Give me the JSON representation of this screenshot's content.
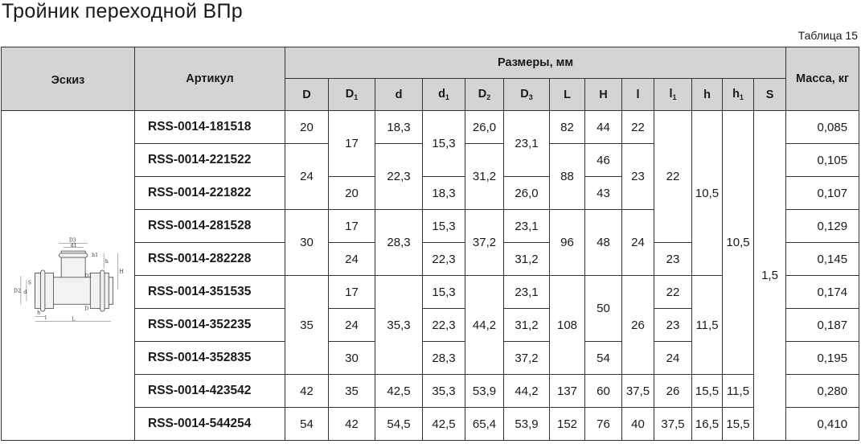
{
  "title": "Тройник переходной ВПр",
  "table_label": "Таблица 15",
  "header": {
    "sketch": "Эскиз",
    "article": "Артикул",
    "dimensions": "Размеры, мм",
    "mass": "Масса, кг"
  },
  "sketch": {
    "labels": [
      "D3",
      "d1",
      "h1",
      "h",
      "H",
      "D1",
      "D2",
      "d",
      "S",
      "D",
      "h",
      "l",
      "L"
    ]
  },
  "articles": [
    "RSS-0014-181518",
    "RSS-0014-221522",
    "RSS-0014-221822",
    "RSS-0014-281528",
    "RSS-0014-282228",
    "RSS-0014-351535",
    "RSS-0014-352235",
    "RSS-0014-352835",
    "RSS-0014-423542",
    "RSS-0014-544254"
  ],
  "mass": [
    "0,085",
    "0,105",
    "0,107",
    "0,129",
    "0,145",
    "0,174",
    "0,187",
    "0,195",
    "0,280",
    "0,410"
  ],
  "dimension_columns": [
    {
      "label": "D",
      "sub": "",
      "groups": [
        {
          "value": "20",
          "rows": 1
        },
        {
          "value": "24",
          "rows": 2
        },
        {
          "value": "30",
          "rows": 2
        },
        {
          "value": "35",
          "rows": 3
        },
        {
          "value": "42",
          "rows": 1
        },
        {
          "value": "54",
          "rows": 1
        }
      ]
    },
    {
      "label": "D",
      "sub": "1",
      "groups": [
        {
          "value": "17",
          "rows": 2
        },
        {
          "value": "20",
          "rows": 1
        },
        {
          "value": "17",
          "rows": 1
        },
        {
          "value": "24",
          "rows": 1
        },
        {
          "value": "17",
          "rows": 1
        },
        {
          "value": "24",
          "rows": 1
        },
        {
          "value": "30",
          "rows": 1
        },
        {
          "value": "35",
          "rows": 1
        },
        {
          "value": "42",
          "rows": 1
        }
      ]
    },
    {
      "label": "d",
      "sub": "",
      "groups": [
        {
          "value": "18,3",
          "rows": 1
        },
        {
          "value": "22,3",
          "rows": 2
        },
        {
          "value": "28,3",
          "rows": 2
        },
        {
          "value": "35,3",
          "rows": 3
        },
        {
          "value": "42,5",
          "rows": 1
        },
        {
          "value": "54,5",
          "rows": 1
        }
      ]
    },
    {
      "label": "d",
      "sub": "1",
      "groups": [
        {
          "value": "15,3",
          "rows": 2
        },
        {
          "value": "18,3",
          "rows": 1
        },
        {
          "value": "15,3",
          "rows": 1
        },
        {
          "value": "22,3",
          "rows": 1
        },
        {
          "value": "15,3",
          "rows": 1
        },
        {
          "value": "22,3",
          "rows": 1
        },
        {
          "value": "28,3",
          "rows": 1
        },
        {
          "value": "35,3",
          "rows": 1
        },
        {
          "value": "42,5",
          "rows": 1
        }
      ]
    },
    {
      "label": "D",
      "sub": "2",
      "groups": [
        {
          "value": "26,0",
          "rows": 1
        },
        {
          "value": "31,2",
          "rows": 2
        },
        {
          "value": "37,2",
          "rows": 2
        },
        {
          "value": "44,2",
          "rows": 3
        },
        {
          "value": "53,9",
          "rows": 1
        },
        {
          "value": "65,4",
          "rows": 1
        }
      ]
    },
    {
      "label": "D",
      "sub": "3",
      "groups": [
        {
          "value": "23,1",
          "rows": 2
        },
        {
          "value": "26,0",
          "rows": 1
        },
        {
          "value": "23,1",
          "rows": 1
        },
        {
          "value": "31,2",
          "rows": 1
        },
        {
          "value": "23,1",
          "rows": 1
        },
        {
          "value": "31,2",
          "rows": 1
        },
        {
          "value": "37,2",
          "rows": 1
        },
        {
          "value": "44,2",
          "rows": 1
        },
        {
          "value": "53,9",
          "rows": 1
        }
      ]
    },
    {
      "label": "L",
      "sub": "",
      "groups": [
        {
          "value": "82",
          "rows": 1
        },
        {
          "value": "88",
          "rows": 2
        },
        {
          "value": "96",
          "rows": 2
        },
        {
          "value": "108",
          "rows": 3
        },
        {
          "value": "137",
          "rows": 1
        },
        {
          "value": "152",
          "rows": 1
        }
      ]
    },
    {
      "label": "H",
      "sub": "",
      "groups": [
        {
          "value": "44",
          "rows": 1
        },
        {
          "value": "46",
          "rows": 1
        },
        {
          "value": "43",
          "rows": 1
        },
        {
          "value": "48",
          "rows": 2
        },
        {
          "value": "50",
          "rows": 2
        },
        {
          "value": "54",
          "rows": 1
        },
        {
          "value": "60",
          "rows": 1
        },
        {
          "value": "76",
          "rows": 1
        }
      ]
    },
    {
      "label": "l",
      "sub": "",
      "groups": [
        {
          "value": "22",
          "rows": 1
        },
        {
          "value": "23",
          "rows": 2
        },
        {
          "value": "24",
          "rows": 2
        },
        {
          "value": "26",
          "rows": 3
        },
        {
          "value": "37,5",
          "rows": 1
        },
        {
          "value": "40",
          "rows": 1
        }
      ]
    },
    {
      "label": "l",
      "sub": "1",
      "groups": [
        {
          "value": "22",
          "rows": 4
        },
        {
          "value": "23",
          "rows": 1
        },
        {
          "value": "22",
          "rows": 1
        },
        {
          "value": "23",
          "rows": 1
        },
        {
          "value": "24",
          "rows": 1
        },
        {
          "value": "26",
          "rows": 1
        },
        {
          "value": "37,5",
          "rows": 1
        }
      ]
    },
    {
      "label": "h",
      "sub": "",
      "groups": [
        {
          "value": "10,5",
          "rows": 5
        },
        {
          "value": "11,5",
          "rows": 3
        },
        {
          "value": "15,5",
          "rows": 1
        },
        {
          "value": "16,5",
          "rows": 1
        }
      ]
    },
    {
      "label": "h",
      "sub": "1",
      "groups": [
        {
          "value": "10,5",
          "rows": 8
        },
        {
          "value": "11,5",
          "rows": 1
        },
        {
          "value": "15,5",
          "rows": 1
        }
      ]
    },
    {
      "label": "S",
      "sub": "",
      "groups": [
        {
          "value": "1,5",
          "rows": 10
        }
      ]
    }
  ]
}
